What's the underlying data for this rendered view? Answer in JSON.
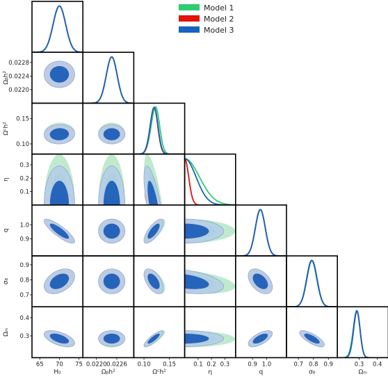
{
  "chart_data": {
    "type": "corner",
    "legend": {
      "placement": "top-right",
      "entries": [
        {
          "name": "Model 1",
          "color": "#2ecc71"
        },
        {
          "name": "Model 2",
          "color": "#e3120b"
        },
        {
          "name": "Model 3",
          "color": "#1565c0"
        }
      ]
    },
    "contour_levels": [
      "68%",
      "95%"
    ],
    "params": [
      {
        "key": "H0",
        "label": "H₀",
        "range": [
          63,
          76
        ],
        "ticks": [
          65,
          70,
          75
        ],
        "tick_labels": [
          "65",
          "70",
          "75"
        ],
        "y_ticks": [],
        "y_tick_labels": [],
        "means": [
          70.0,
          70.0,
          70.0
        ],
        "sds": [
          1.6,
          1.6,
          1.6
        ],
        "skew": [
          0,
          0,
          0
        ]
      },
      {
        "key": "Obh2",
        "label": "Ωᵦh²",
        "range": [
          0.0216,
          0.0231
        ],
        "ticks": [
          0.022,
          0.0226
        ],
        "tick_labels": [
          "0.0220",
          "0.0226"
        ],
        "y_ticks": [
          0.022,
          0.0224,
          0.0228
        ],
        "y_tick_labels": [
          "0.0220",
          "0.0224",
          "0.0228"
        ],
        "means": [
          0.02245,
          0.02245,
          0.02245
        ],
        "sds": [
          0.00016,
          0.00016,
          0.00016
        ],
        "skew": [
          0,
          0,
          0
        ]
      },
      {
        "key": "Och2",
        "label": "Ωᶜh²",
        "range": [
          0.08,
          0.18
        ],
        "ticks": [
          0.1,
          0.15
        ],
        "tick_labels": [
          "0.10",
          "0.15"
        ],
        "y_ticks": [
          0.1,
          0.15
        ],
        "y_tick_labels": [
          "0.10",
          "0.15"
        ],
        "means": [
          0.121,
          0.119,
          0.119
        ],
        "sds": [
          0.0085,
          0.0075,
          0.0078
        ],
        "skew": [
          0.6,
          0.3,
          0.4
        ]
      },
      {
        "key": "eta",
        "label": "η",
        "range": [
          0.0,
          0.38
        ],
        "ticks": [
          0.1,
          0.2,
          0.3
        ],
        "tick_labels": [
          "0.1",
          "0.2",
          "0.3"
        ],
        "y_ticks": [
          0.1,
          0.2,
          0.3
        ],
        "y_tick_labels": [
          "0.1",
          "0.2",
          "0.3"
        ],
        "half_widths": [
          0.11,
          0.03,
          0.085
        ]
      },
      {
        "key": "q",
        "label": "q",
        "range": [
          0.78,
          1.14
        ],
        "ticks": [
          0.9,
          1.0
        ],
        "tick_labels": [
          "0.9",
          "1.0"
        ],
        "y_ticks": [
          0.9,
          1.0
        ],
        "y_tick_labels": [
          "0.9",
          "1.0"
        ],
        "means": [
          0.955,
          0.955,
          0.955
        ],
        "sds": [
          0.035,
          0.035,
          0.035
        ],
        "skew": [
          0,
          0,
          0
        ]
      },
      {
        "key": "sigma8",
        "label": "σ₈",
        "range": [
          0.62,
          0.96
        ],
        "ticks": [
          0.7,
          0.8,
          0.9
        ],
        "tick_labels": [
          "0.7",
          "0.8",
          "0.9"
        ],
        "y_ticks": [
          0.7,
          0.8,
          0.9
        ],
        "y_tick_labels": [
          "0.7",
          "0.8",
          "0.9"
        ],
        "means": [
          0.79,
          0.79,
          0.79
        ],
        "sds": [
          0.034,
          0.034,
          0.034
        ],
        "skew": [
          -0.2,
          0,
          0
        ]
      },
      {
        "key": "Om",
        "label": "Ωₘ",
        "range": [
          0.18,
          0.46
        ],
        "ticks": [
          0.3,
          0.4
        ],
        "tick_labels": [
          "0.3",
          "0.4"
        ],
        "y_ticks": [
          0.3,
          0.4
        ],
        "y_tick_labels": [
          "0.3",
          "0.4"
        ],
        "means": [
          0.283,
          0.285,
          0.285
        ],
        "sds": [
          0.019,
          0.018,
          0.018
        ],
        "skew": [
          0.5,
          0.4,
          0.4
        ]
      }
    ],
    "correlations": {
      "Obh2|H0": 0.0,
      "Och2|H0": 0.05,
      "Och2|Obh2": 0.0,
      "q|H0": -0.85,
      "q|Obh2": 0.0,
      "q|Och2": 0.75,
      "q|eta": 0.0,
      "sigma8|H0": 0.4,
      "sigma8|Obh2": 0.0,
      "sigma8|Och2": -0.55,
      "sigma8|eta": -0.4,
      "sigma8|q": -0.45,
      "Om|H0": -0.55,
      "Om|Obh2": 0.0,
      "Om|Och2": 0.85,
      "Om|eta": 0.0,
      "Om|q": 0.65,
      "Om|sigma8": -0.75
    }
  }
}
